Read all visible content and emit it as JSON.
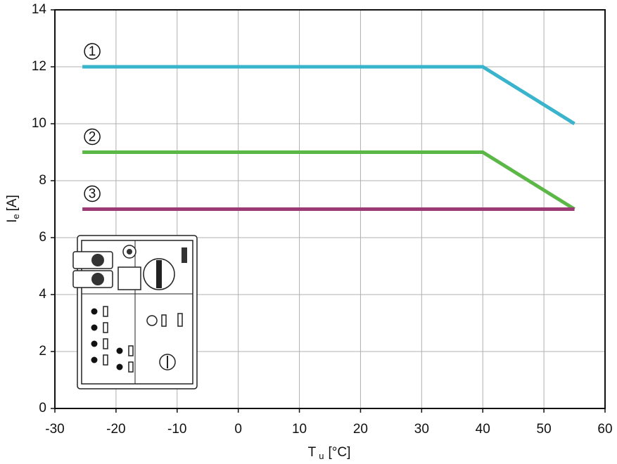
{
  "chart_data": {
    "type": "line",
    "x_label": {
      "symbol": "T",
      "subscript": "u",
      "unit": "[°C]"
    },
    "y_label": {
      "symbol": "I",
      "subscript": "e",
      "unit": "[A]"
    },
    "x": [
      -25.5,
      40,
      55
    ],
    "series": [
      {
        "name": "1",
        "color": "#3ab4cc",
        "values": [
          12,
          12,
          10
        ]
      },
      {
        "name": "2",
        "color": "#5cb846",
        "values": [
          9,
          9,
          7
        ]
      },
      {
        "name": "3",
        "color": "#9b3a74",
        "values": [
          7,
          7,
          7
        ]
      }
    ],
    "xlim": [
      -30,
      60
    ],
    "xticks": [
      -30,
      -20,
      -10,
      0,
      10,
      20,
      30,
      40,
      50,
      60
    ],
    "ylim": [
      0,
      14
    ],
    "yticks": [
      0,
      2,
      4,
      6,
      8,
      10,
      12,
      14
    ],
    "grid": true
  }
}
